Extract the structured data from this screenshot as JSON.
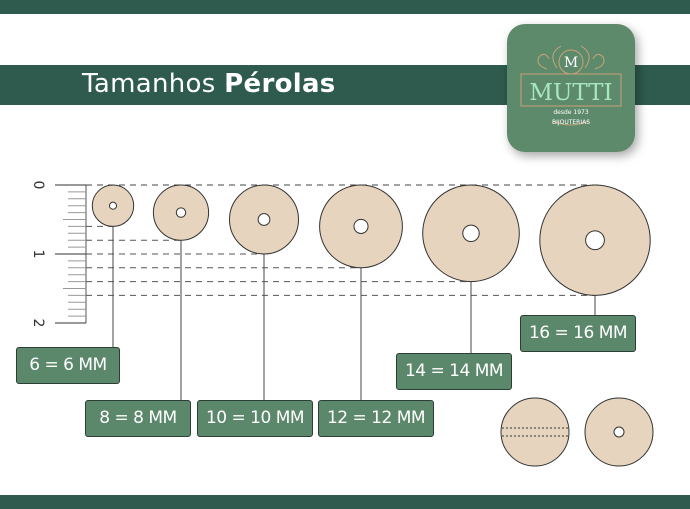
{
  "title": {
    "regular": "Tamanhos",
    "bold": "Pérolas"
  },
  "logo": {
    "initial": "M",
    "brand": "MUTTI",
    "since": "desde 1973",
    "tagline": "BIJOUTERIAS"
  },
  "colors": {
    "band": "#2f5b4f",
    "label_bg": "#5b876b",
    "pearl": "#e6d4bf",
    "logo_bg": "#5e8a6c",
    "logo_text": "#a8e6c0",
    "logo_gold": "#c9a27a"
  },
  "ruler": {
    "unit": "cm",
    "ticks": [
      "0",
      "1",
      "2"
    ],
    "minor_per_unit": 10
  },
  "pearls": [
    {
      "size_mm": 6,
      "label": "6 = 6 MM"
    },
    {
      "size_mm": 8,
      "label": "8 = 8 MM"
    },
    {
      "size_mm": 10,
      "label": "10 = 10 MM"
    },
    {
      "size_mm": 12,
      "label": "12 = 12 MM"
    },
    {
      "size_mm": 14,
      "label": "14 = 14 MM"
    },
    {
      "size_mm": 16,
      "label": "16 = 16 MM"
    }
  ],
  "examples": [
    {
      "view": "side-with-hole-channel"
    },
    {
      "view": "front-with-hole"
    }
  ]
}
